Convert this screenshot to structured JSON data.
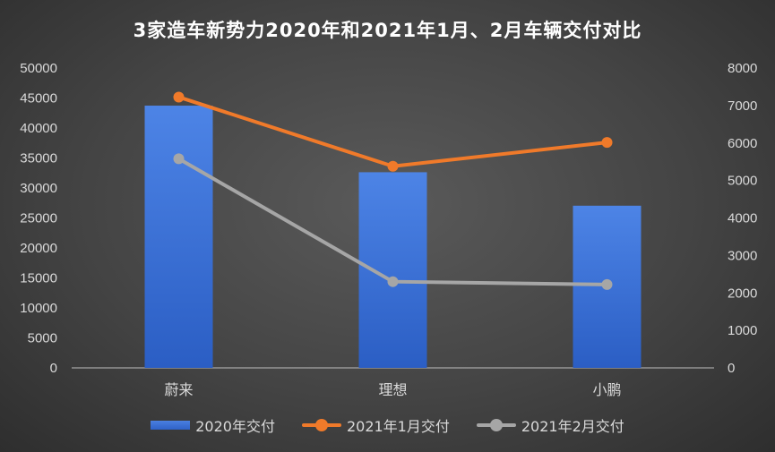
{
  "chart_data": {
    "type": "bar+line",
    "title": "3家造车新势力2020年和2021年1月、2月车辆交付对比",
    "categories": [
      "蔚来",
      "理想",
      "小鹏"
    ],
    "series": [
      {
        "name": "2020年交付",
        "type": "bar",
        "axis": "left",
        "values": [
          43728,
          32624,
          27041
        ],
        "color": "#3a6fd8"
      },
      {
        "name": "2021年1月交付",
        "type": "line",
        "axis": "right",
        "values": [
          7225,
          5379,
          6015
        ],
        "color": "#f07a2a"
      },
      {
        "name": "2021年2月交付",
        "type": "line",
        "axis": "right",
        "values": [
          5578,
          2300,
          2223
        ],
        "color": "#a6a6a6"
      }
    ],
    "y_left": {
      "min": 0,
      "max": 50000,
      "step": 5000
    },
    "y_right": {
      "min": 0,
      "max": 8000,
      "step": 1000
    },
    "grid": false,
    "legend": "bottom",
    "xlabel": "",
    "ylabel": ""
  }
}
